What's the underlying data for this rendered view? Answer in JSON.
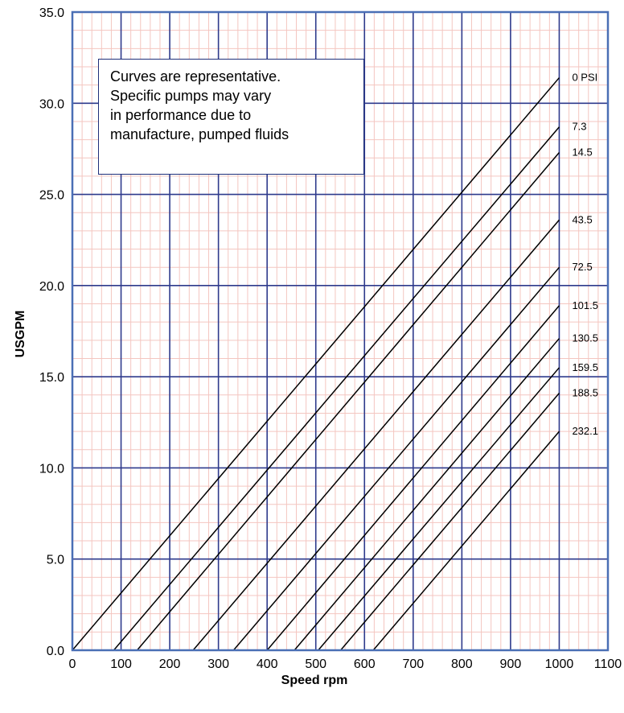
{
  "chart_data": {
    "type": "line",
    "title": "",
    "xlabel": "Speed rpm",
    "ylabel": "USGPM",
    "xlim": [
      0,
      1100
    ],
    "ylim": [
      0,
      35
    ],
    "x_ticks": [
      "0",
      "100",
      "200",
      "300",
      "400",
      "500",
      "600",
      "700",
      "800",
      "900",
      "1000",
      "1100"
    ],
    "y_ticks": [
      "0.0",
      "5.0",
      "10.0",
      "15.0",
      "20.0",
      "25.0",
      "30.0",
      "35.0"
    ],
    "grid": true,
    "legend": "labels at right end of each curve",
    "colors": {
      "major_grid": "#2e3a8c",
      "minor_grid": "#f4c6c0",
      "frame": "#4a6fb5",
      "curve": "#000000"
    },
    "series": [
      {
        "name": "0 PSI",
        "x": [
          0,
          1000
        ],
        "y": [
          0,
          31.4
        ]
      },
      {
        "name": "7.3",
        "x": [
          85,
          1000
        ],
        "y": [
          0,
          28.7
        ]
      },
      {
        "name": "14.5",
        "x": [
          133,
          1000
        ],
        "y": [
          0,
          27.3
        ]
      },
      {
        "name": "43.5",
        "x": [
          248,
          1000
        ],
        "y": [
          0,
          23.6
        ]
      },
      {
        "name": "72.5",
        "x": [
          331,
          1000
        ],
        "y": [
          0,
          21.0
        ]
      },
      {
        "name": "101.5",
        "x": [
          400,
          1000
        ],
        "y": [
          0,
          18.9
        ]
      },
      {
        "name": "130.5",
        "x": [
          456,
          1000
        ],
        "y": [
          0,
          17.1
        ]
      },
      {
        "name": "159.5",
        "x": [
          505,
          1000
        ],
        "y": [
          0,
          15.5
        ]
      },
      {
        "name": "188.5",
        "x": [
          551,
          1000
        ],
        "y": [
          0,
          14.1
        ]
      },
      {
        "name": "232.1",
        "x": [
          618,
          1000
        ],
        "y": [
          0,
          12.0
        ]
      }
    ],
    "annotation": [
      "Curves are representative.",
      "Specific pumps may vary",
      "in performance due to",
      "manufacture, pumped fluids"
    ]
  }
}
